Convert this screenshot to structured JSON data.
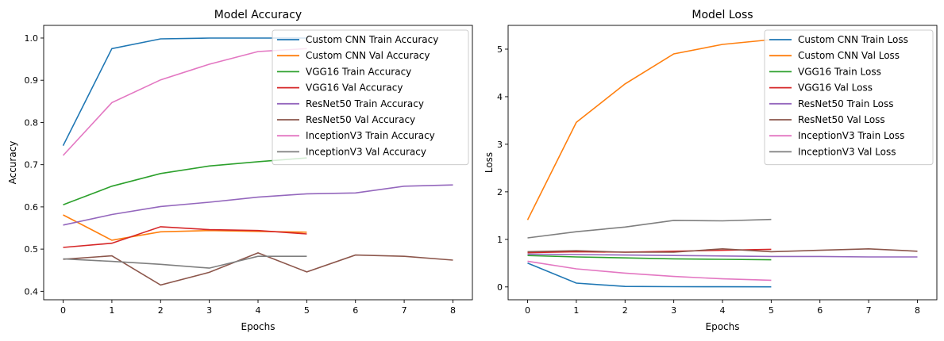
{
  "chart_data": [
    {
      "type": "line",
      "title": "Model Accuracy",
      "xlabel": "Epochs",
      "ylabel": "Accuracy",
      "xlim": [
        -0.4,
        8.4
      ],
      "ylim": [
        0.38,
        1.03
      ],
      "xticks": [
        "0",
        "1",
        "2",
        "3",
        "4",
        "5",
        "6",
        "7",
        "8"
      ],
      "yticks": [
        "0.4",
        "0.5",
        "0.6",
        "0.7",
        "0.8",
        "0.9",
        "1.0"
      ],
      "grid": false,
      "legend_position": "top-right",
      "series": [
        {
          "name": "Custom CNN Train Accuracy",
          "color": "#1f77b4",
          "x": [
            0,
            1,
            2,
            3,
            4,
            5
          ],
          "y": [
            0.745,
            0.975,
            0.998,
            1.0,
            1.0,
            1.0
          ]
        },
        {
          "name": "Custom CNN Val Accuracy",
          "color": "#ff7f0e",
          "x": [
            0,
            1,
            2,
            3,
            4,
            5
          ],
          "y": [
            0.581,
            0.521,
            0.541,
            0.544,
            0.542,
            0.54
          ]
        },
        {
          "name": "VGG16 Train Accuracy",
          "color": "#2ca02c",
          "x": [
            0,
            1,
            2,
            3,
            4,
            5
          ],
          "y": [
            0.605,
            0.649,
            0.679,
            0.697,
            0.707,
            0.716
          ]
        },
        {
          "name": "VGG16 Val Accuracy",
          "color": "#d62728",
          "x": [
            0,
            1,
            2,
            3,
            4,
            5
          ],
          "y": [
            0.504,
            0.514,
            0.553,
            0.546,
            0.544,
            0.536
          ]
        },
        {
          "name": "ResNet50 Train Accuracy",
          "color": "#9467bd",
          "x": [
            0,
            1,
            2,
            3,
            4,
            5,
            6,
            7,
            8
          ],
          "y": [
            0.557,
            0.582,
            0.601,
            0.611,
            0.623,
            0.631,
            0.633,
            0.649,
            0.652
          ]
        },
        {
          "name": "ResNet50 Val Accuracy",
          "color": "#8c564b",
          "x": [
            0,
            1,
            2,
            3,
            4,
            5,
            6,
            7,
            8
          ],
          "y": [
            0.476,
            0.484,
            0.415,
            0.445,
            0.491,
            0.446,
            0.486,
            0.483,
            0.474
          ]
        },
        {
          "name": "InceptionV3 Train Accuracy",
          "color": "#e377c2",
          "x": [
            0,
            1,
            2,
            3,
            4,
            5
          ],
          "y": [
            0.722,
            0.847,
            0.901,
            0.938,
            0.968,
            0.975
          ]
        },
        {
          "name": "InceptionV3 Val Accuracy",
          "color": "#7f7f7f",
          "x": [
            0,
            1,
            2,
            3,
            4,
            5
          ],
          "y": [
            0.477,
            0.471,
            0.464,
            0.455,
            0.483,
            0.483
          ]
        }
      ]
    },
    {
      "type": "line",
      "title": "Model Loss",
      "xlabel": "Epochs",
      "ylabel": "Loss",
      "xlim": [
        -0.4,
        8.4
      ],
      "ylim": [
        -0.27,
        5.5
      ],
      "xticks": [
        "0",
        "1",
        "2",
        "3",
        "4",
        "5",
        "6",
        "7",
        "8"
      ],
      "yticks": [
        "0",
        "1",
        "2",
        "3",
        "4",
        "5"
      ],
      "grid": false,
      "legend_position": "top-right",
      "series": [
        {
          "name": "Custom CNN Train Loss",
          "color": "#1f77b4",
          "x": [
            0,
            1,
            2,
            3,
            4,
            5
          ],
          "y": [
            0.5,
            0.08,
            0.01,
            0.005,
            0.003,
            0.002
          ]
        },
        {
          "name": "Custom CNN Val Loss",
          "color": "#ff7f0e",
          "x": [
            0,
            1,
            2,
            3,
            4,
            5
          ],
          "y": [
            1.41,
            3.46,
            4.27,
            4.9,
            5.1,
            5.2
          ]
        },
        {
          "name": "VGG16 Train Loss",
          "color": "#2ca02c",
          "x": [
            0,
            1,
            2,
            3,
            4,
            5
          ],
          "y": [
            0.66,
            0.63,
            0.61,
            0.59,
            0.58,
            0.57
          ]
        },
        {
          "name": "VGG16 Val Loss",
          "color": "#d62728",
          "x": [
            0,
            1,
            2,
            3,
            4,
            5
          ],
          "y": [
            0.72,
            0.74,
            0.73,
            0.75,
            0.77,
            0.79
          ]
        },
        {
          "name": "ResNet50 Train Loss",
          "color": "#9467bd",
          "x": [
            0,
            1,
            2,
            3,
            4,
            5,
            6,
            7,
            8
          ],
          "y": [
            0.69,
            0.68,
            0.67,
            0.66,
            0.65,
            0.64,
            0.64,
            0.63,
            0.63
          ]
        },
        {
          "name": "ResNet50 Val Loss",
          "color": "#8c564b",
          "x": [
            0,
            1,
            2,
            3,
            4,
            5,
            6,
            7,
            8
          ],
          "y": [
            0.74,
            0.76,
            0.73,
            0.73,
            0.8,
            0.74,
            0.77,
            0.8,
            0.75
          ]
        },
        {
          "name": "InceptionV3 Train Loss",
          "color": "#e377c2",
          "x": [
            0,
            1,
            2,
            3,
            4,
            5
          ],
          "y": [
            0.54,
            0.38,
            0.29,
            0.22,
            0.17,
            0.14
          ]
        },
        {
          "name": "InceptionV3 Val Loss",
          "color": "#7f7f7f",
          "x": [
            0,
            1,
            2,
            3,
            4,
            5
          ],
          "y": [
            1.03,
            1.16,
            1.26,
            1.4,
            1.39,
            1.42
          ]
        }
      ]
    }
  ]
}
